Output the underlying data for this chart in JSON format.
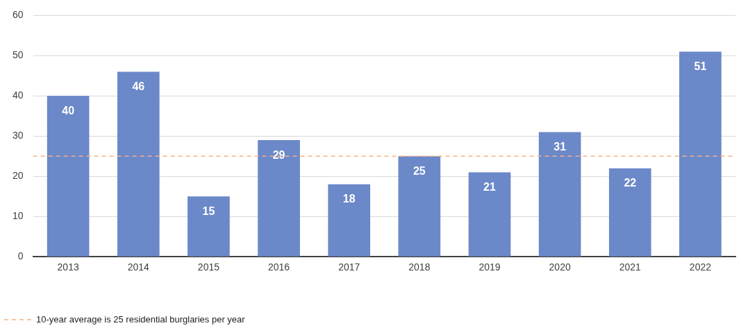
{
  "chart_data": {
    "type": "bar",
    "categories": [
      "2013",
      "2014",
      "2015",
      "2016",
      "2017",
      "2018",
      "2019",
      "2020",
      "2021",
      "2022"
    ],
    "values": [
      40,
      46,
      15,
      29,
      18,
      25,
      21,
      31,
      22,
      51
    ],
    "color": "#6b88c9",
    "ylim": [
      0,
      60
    ],
    "yticks": [
      0,
      10,
      20,
      30,
      40,
      50,
      60
    ],
    "grid": "y",
    "data_labels": true,
    "ref_lines": [
      {
        "axis": "y",
        "value": 25,
        "label": "10-year average is 25 residential burglaries per year",
        "color": "#f4b183",
        "line_style": "dashed"
      }
    ]
  }
}
